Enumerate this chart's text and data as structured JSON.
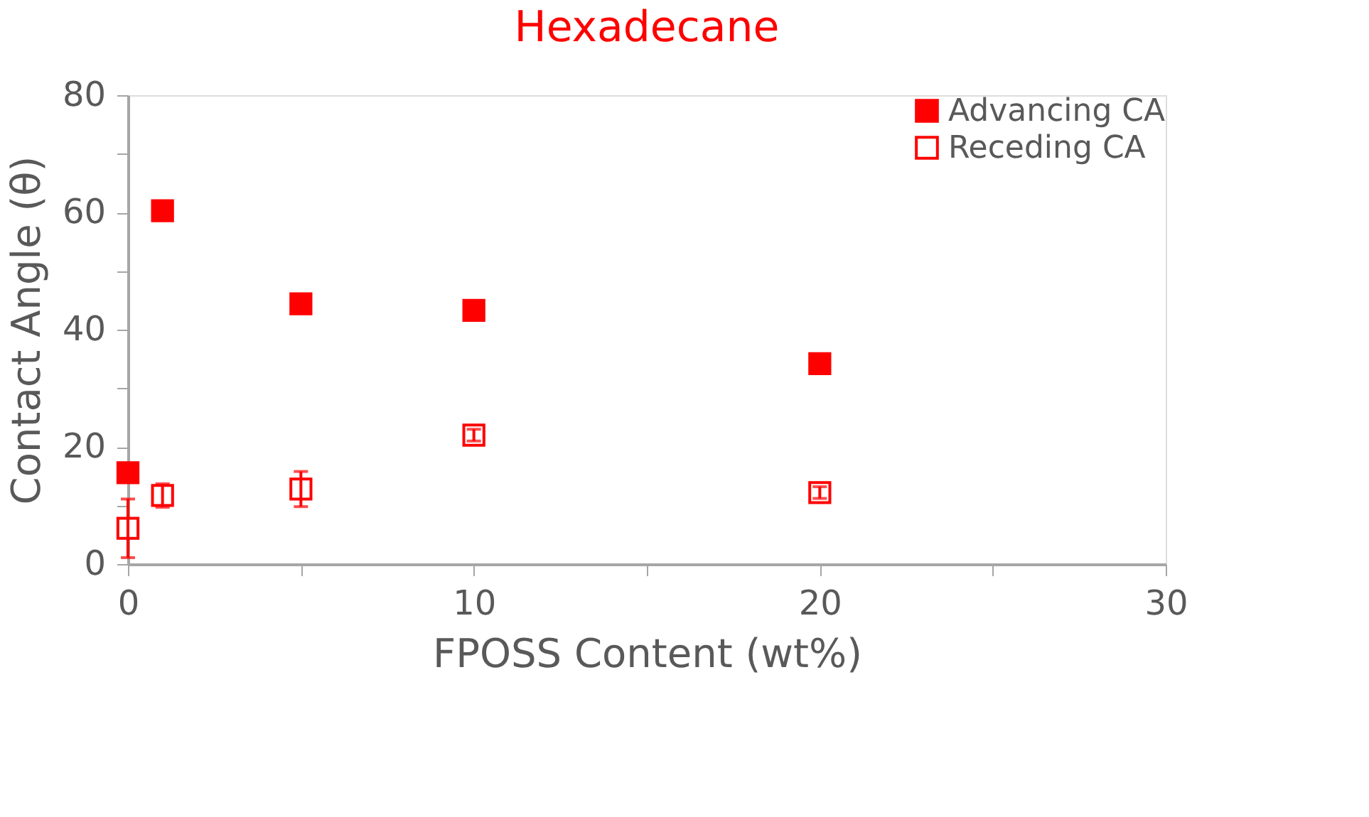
{
  "chart_data": {
    "type": "scatter",
    "title": "Hexadecane",
    "xlabel": "FPOSS Content (wt%)",
    "ylabel": "Contact Angle (θ)",
    "x": [
      0,
      1,
      5,
      10,
      20
    ],
    "series": [
      {
        "name": "Advancing CA",
        "color": "#ff0000",
        "marker": "square",
        "values": [
          15.6,
          60.3,
          44.4,
          43.3,
          34.2
        ],
        "errors": [
          null,
          null,
          1,
          null,
          null
        ]
      },
      {
        "name": "Receding CA",
        "color": "#ff0000",
        "marker": "square",
        "values": [
          6.1,
          11.7,
          12.8,
          22,
          12.2
        ],
        "errors": [
          5,
          2,
          3,
          1,
          1
        ]
      }
    ],
    "xlim": [
      0,
      30
    ],
    "xticks": [
      0,
      {
        "value": 5,
        "label": null
      },
      10,
      {
        "value": 15,
        "label": null
      },
      20,
      {
        "value": 25,
        "label": null
      },
      30
    ],
    "ylim": [
      0,
      80
    ],
    "yticks": [
      0,
      {
        "value": 10,
        "label": null
      },
      20,
      {
        "value": 30,
        "label": null
      },
      40,
      {
        "value": 50,
        "label": null
      },
      60,
      {
        "value": 70,
        "label": null
      },
      80
    ],
    "grid": false,
    "legend": "top right"
  }
}
